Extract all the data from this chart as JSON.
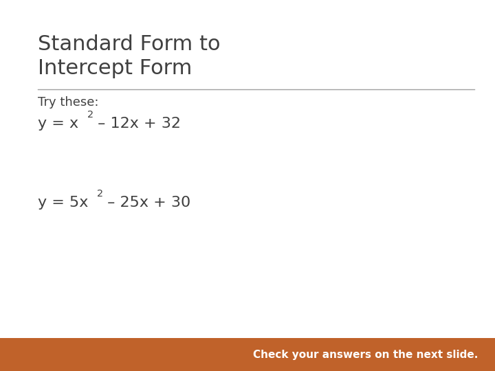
{
  "title_line1": "Standard Form to",
  "title_line2": "Intercept Form",
  "title_color": "#404040",
  "title_fontsize": 22,
  "bg_color": "#ffffff",
  "divider_color": "#a0a0a0",
  "try_these_text": "Try these:",
  "body_color": "#404040",
  "body_fontsize": 13,
  "eq1_main": "y = x",
  "eq1_sup": "2",
  "eq1_rest": " – 12x + 32",
  "eq2_main": "y = 5x",
  "eq2_sup": "2",
  "eq2_rest": " – 25x + 30",
  "eq_fontsize": 16,
  "footer_text": "Check your answers on the next slide.",
  "footer_bg": "#c0622a",
  "footer_text_color": "#ffffff",
  "footer_fontsize": 11
}
